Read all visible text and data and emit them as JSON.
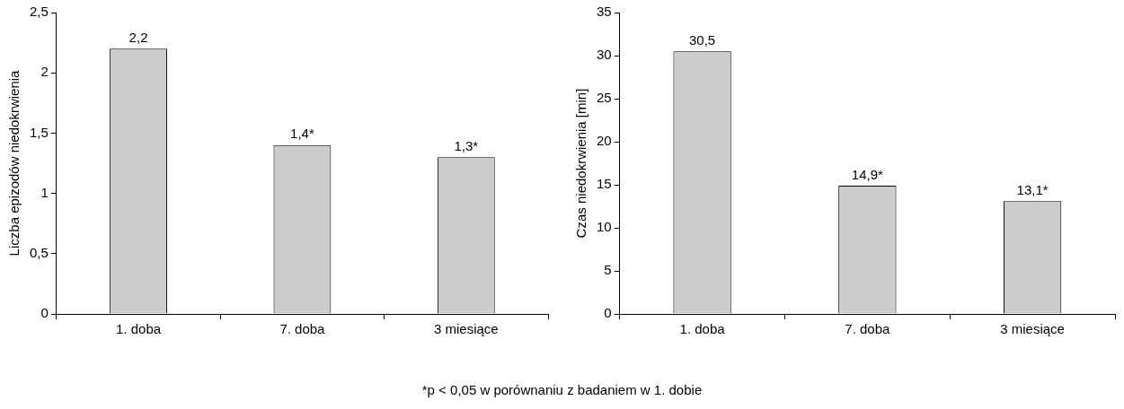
{
  "chart_data": [
    {
      "type": "bar",
      "ylabel": "Liczba epizodów niedokrwienia",
      "categories": [
        "1. doba",
        "7. doba",
        "3 miesiące"
      ],
      "values": [
        2.2,
        1.4,
        1.3
      ],
      "color": "#cccccc",
      "value_labels": [
        "2,2",
        "1,4*",
        "1,3*"
      ],
      "ylim": [
        0,
        2.5
      ],
      "yticks": [
        0,
        {
          "value": 0.5,
          "label": "0,5"
        },
        1,
        {
          "value": 1.5,
          "label": "1,5"
        },
        2,
        {
          "value": 2.5,
          "label": "2,5"
        }
      ],
      "grid": false,
      "legend": false
    },
    {
      "type": "bar",
      "ylabel": "Czas niedokrwienia [min]",
      "categories": [
        "1. doba",
        "7. doba",
        "3 miesiące"
      ],
      "values": [
        30.5,
        14.9,
        13.1
      ],
      "color": "#cccccc",
      "value_labels": [
        "30,5",
        "14,9*",
        "13,1*"
      ],
      "ylim": [
        0,
        35
      ],
      "yticks": [
        0,
        5,
        10,
        15,
        20,
        25,
        30,
        35
      ],
      "grid": false,
      "legend": false,
      "annotations": [
        "*p < 0,05 w porównaniu z badaniem w 1. dobie"
      ]
    }
  ]
}
